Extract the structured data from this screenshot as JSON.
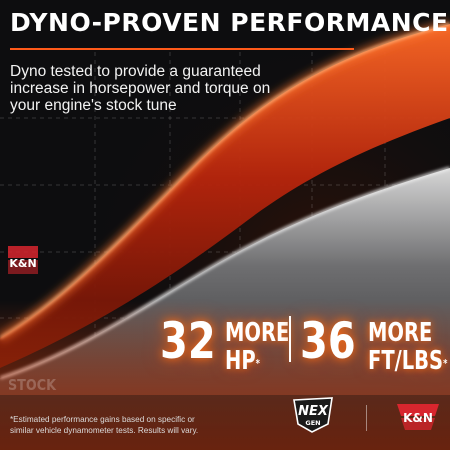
{
  "headline": "DYNO-PROVEN PERFORMANCE",
  "intro": "Dyno tested to provide a guaranteed increase in horsepower and torque on your engine's stock tune",
  "stats": {
    "hp": {
      "value": "32",
      "more": "MORE",
      "unit": "HP",
      "mark": "*"
    },
    "torque": {
      "value": "36",
      "more": "MORE",
      "unit": "FT/LBS",
      "mark": "*"
    }
  },
  "curve_labels": {
    "stock": "STOCK"
  },
  "disclaimer": "*Estimated performance gains based on specific or similar vehicle dynamometer tests. Results will vary.",
  "logos": {
    "kn_side": {
      "text": "K&N",
      "color": "#d8262e"
    },
    "kn_footer": {
      "text": "K&N",
      "color": "#d8262e"
    },
    "nexgen": {
      "big": "NEX",
      "small": "GEN"
    }
  },
  "colors": {
    "accent": "#ff5a1a",
    "kn_red": "#d8262e",
    "background": "#0d0d0f",
    "performance_curve": "#e0451a",
    "stock_curve": "#b8b8b8"
  }
}
